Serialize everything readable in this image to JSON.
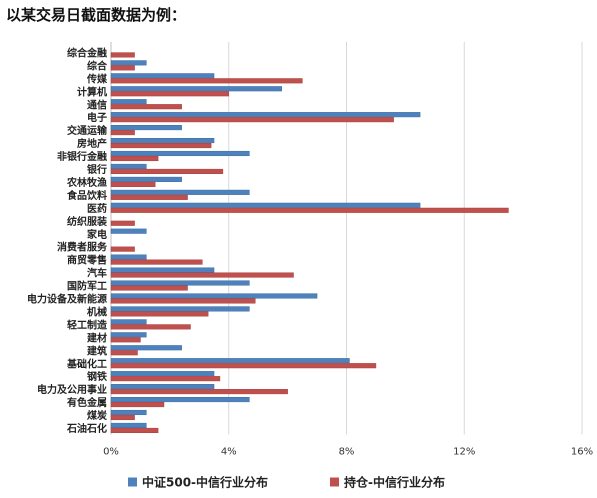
{
  "heading": "以某交易日截面数据为例：",
  "chart_data": {
    "type": "bar",
    "orientation": "horizontal",
    "categories": [
      "综合金融",
      "综合",
      "传媒",
      "计算机",
      "通信",
      "电子",
      "交通运输",
      "房地产",
      "非银行金融",
      "银行",
      "农林牧渔",
      "食品饮料",
      "医药",
      "纺织服装",
      "家电",
      "消费者服务",
      "商贸零售",
      "汽车",
      "国防军工",
      "电力设备及新能源",
      "机械",
      "轻工制造",
      "建材",
      "建筑",
      "基础化工",
      "钢铁",
      "电力及公用事业",
      "有色金属",
      "煤炭",
      "石油石化"
    ],
    "series": [
      {
        "name": "中证500-中信行业分布",
        "color": "#4f81bd",
        "values": [
          0.0,
          1.2,
          3.5,
          5.8,
          1.2,
          10.5,
          2.4,
          3.5,
          4.7,
          1.2,
          2.4,
          4.7,
          10.5,
          0.0,
          1.2,
          0.0,
          1.2,
          3.5,
          4.7,
          7.0,
          4.7,
          1.2,
          1.2,
          2.4,
          8.1,
          3.5,
          3.5,
          4.7,
          1.2,
          1.2
        ]
      },
      {
        "name": "持仓-中信行业分布",
        "color": "#c0504d",
        "values": [
          0.8,
          0.8,
          6.5,
          4.0,
          2.4,
          9.6,
          0.8,
          3.4,
          1.6,
          3.8,
          1.5,
          2.6,
          13.5,
          0.8,
          0.0,
          0.8,
          3.1,
          6.2,
          2.6,
          4.9,
          3.3,
          2.7,
          1.0,
          0.9,
          9.0,
          3.7,
          6.0,
          1.8,
          0.8,
          1.6
        ]
      }
    ],
    "x_ticks": [
      "0%",
      "4%",
      "8%",
      "12%",
      "16%"
    ],
    "xlim": [
      0,
      16
    ],
    "grid": true,
    "legend_position": "bottom"
  }
}
